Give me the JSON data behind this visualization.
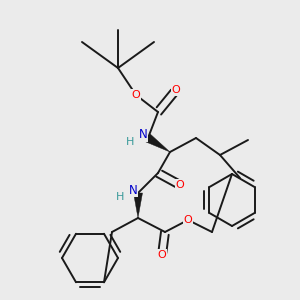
{
  "background_color": "#ebebeb",
  "bond_color": "#1a1a1a",
  "bond_width": 1.4,
  "atom_colors": {
    "O": "#ff0000",
    "N": "#0000cc",
    "H_on_N": "#3a9a9a"
  },
  "figsize": [
    3.0,
    3.0
  ],
  "dpi": 100
}
